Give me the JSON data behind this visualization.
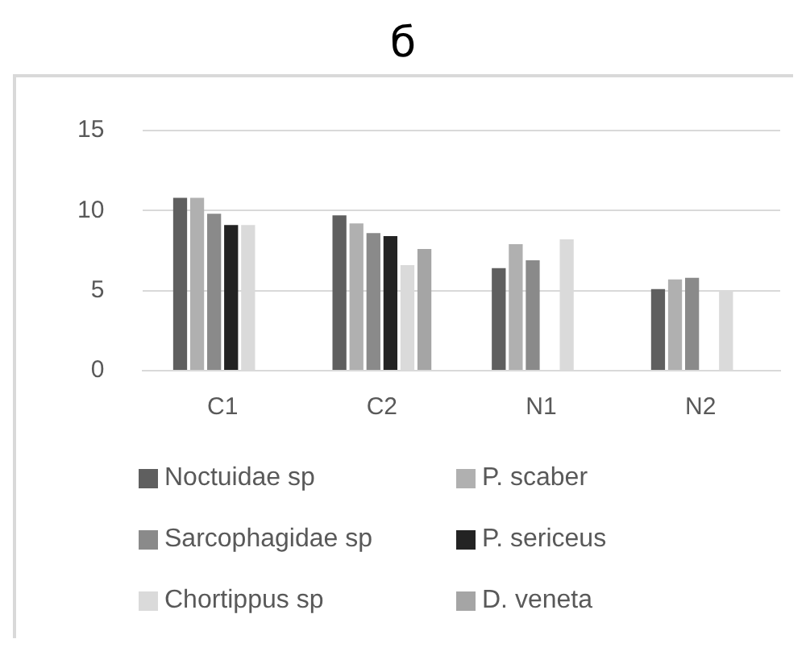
{
  "chart_data": {
    "type": "bar",
    "title": "б",
    "categories": [
      "C1",
      "C2",
      "N1",
      "N2"
    ],
    "series": [
      {
        "name": "Noctuidae sp",
        "color": "#5f5f5f",
        "values": [
          10.8,
          9.7,
          6.4,
          5.1
        ]
      },
      {
        "name": "P. scaber",
        "color": "#b0b0b0",
        "values": [
          10.8,
          9.2,
          7.9,
          5.7
        ]
      },
      {
        "name": "Sarcophagidae sp",
        "color": "#8a8a8a",
        "values": [
          9.8,
          8.6,
          6.9,
          5.8
        ]
      },
      {
        "name": "P. sericeus",
        "color": "#232323",
        "values": [
          9.1,
          8.4,
          null,
          null
        ]
      },
      {
        "name": "Chortippus sp",
        "color": "#dadada",
        "values": [
          9.1,
          6.6,
          8.2,
          5.0
        ]
      },
      {
        "name": "D. veneta",
        "color": "#a5a5a5",
        "values": [
          null,
          7.6,
          null,
          null
        ]
      }
    ],
    "ylim": [
      0,
      15
    ],
    "yticks": [
      0,
      5,
      10,
      15
    ],
    "grid": "y",
    "legend": "bottom"
  }
}
